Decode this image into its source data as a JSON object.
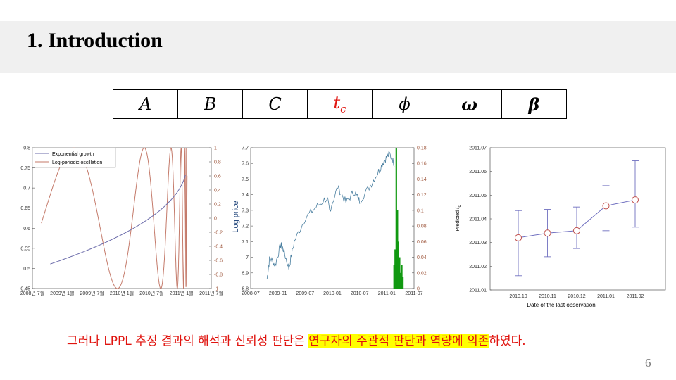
{
  "slide": {
    "title": "1. Introduction",
    "page_number": "6",
    "caption_before": "그러나 LPPL 추정 결과의 해석과 신뢰성 판단은 ",
    "caption_highlight1": "연구자의 주관적 판단과 역량에 의존",
    "caption_after": "하였다."
  },
  "params": [
    "A",
    "B",
    "C",
    "t",
    "ϕ",
    "ω",
    "β"
  ],
  "params_sub": "c",
  "colors": {
    "accent_red": "#e0140f",
    "highlight": "#ffff00",
    "blue_line": "#6b6baa",
    "red_line": "#c47a6a",
    "green": "#119911",
    "violet": "#7070c0"
  },
  "chart_data": [
    {
      "type": "line",
      "series": [
        {
          "name": "Exponential growth",
          "axis": "left"
        },
        {
          "name": "Log-periodic oscillation",
          "axis": "right"
        }
      ],
      "xticks": [
        "2008년 7월",
        "2009년 1월",
        "2009년 7월",
        "2010년 1월",
        "2010년 7월",
        "2011년 1월",
        "2011년 7월"
      ],
      "yticks_left": [
        "0.45",
        "0.5",
        "0.55",
        "0.6",
        "0.65",
        "0.7",
        "0.75",
        "0.8"
      ],
      "yticks_right": [
        "-1",
        "-0.8",
        "-0.6",
        "-0.4",
        "-0.2",
        "0",
        "0.2",
        "0.4",
        "0.6",
        "0.8",
        "1"
      ],
      "ylim_left": [
        0.45,
        0.8
      ],
      "ylim_right": [
        -1,
        1
      ],
      "legend": "top-left"
    },
    {
      "type": "line",
      "ylabel": "Log price",
      "xticks": [
        "2008-07",
        "2009-01",
        "2009-07",
        "2010-01",
        "2010-07",
        "2011-01",
        "2011-07"
      ],
      "yticks_left": [
        "6.8",
        "6.9",
        "7",
        "7.1",
        "7.2",
        "7.3",
        "7.4",
        "7.5",
        "7.6",
        "7.7"
      ],
      "yticks_right": [
        "0",
        "0.02",
        "0.04",
        "0.06",
        "0.08",
        "0.1",
        "0.12",
        "0.14",
        "0.16",
        "0.18"
      ],
      "ylim_left": [
        6.8,
        7.7
      ],
      "ylim_right": [
        0,
        0.18
      ]
    },
    {
      "type": "scatter",
      "xlabel": "Date of the last observation",
      "ylabel": "Predicted",
      "ylabel_sub": "c",
      "categories": [
        "2010.10",
        "2010.11",
        "2010.12",
        "2011.01",
        "2011.02"
      ],
      "yticks": [
        "2011.01",
        "2011.02",
        "2011.03",
        "2011.04",
        "2011.05",
        "2011.06",
        "2011.07"
      ],
      "ylim": [
        2011.01,
        2011.07
      ],
      "values": [
        2011.032,
        2011.034,
        2011.035,
        2011.0455,
        2011.048
      ],
      "err_low": [
        2011.016,
        2011.024,
        2011.0275,
        2011.035,
        2011.0365
      ],
      "err_high": [
        2011.0435,
        2011.044,
        2011.045,
        2011.054,
        2011.0645
      ]
    }
  ]
}
